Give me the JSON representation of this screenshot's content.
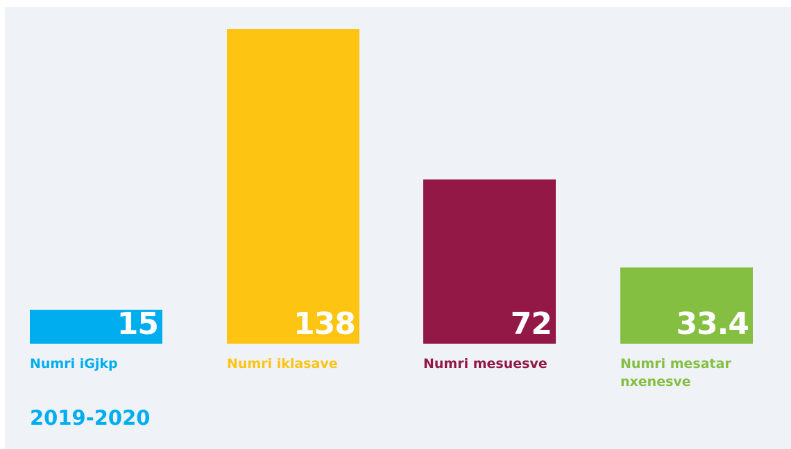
{
  "chart_data": {
    "type": "bar",
    "title": "2019-2020",
    "categories": [
      "Numri iGjkp",
      "Numri iklasave",
      "Numri mesuesve",
      "Numri mesatar nxenesve"
    ],
    "values": [
      15,
      138,
      72,
      33.4
    ],
    "colors": [
      "#00aeef",
      "#fdc411",
      "#931846",
      "#84bf41"
    ]
  }
}
